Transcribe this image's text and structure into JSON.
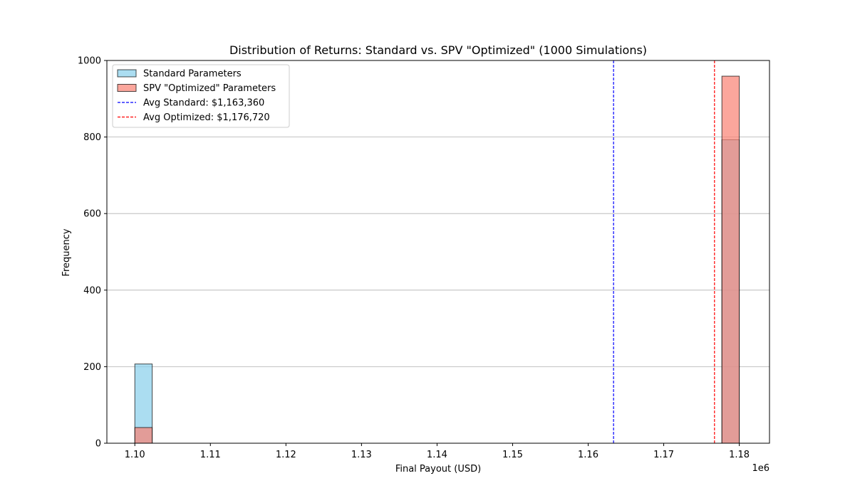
{
  "chart_data": {
    "type": "bar",
    "title": "Distribution of Returns: Standard vs. SPV \"Optimized\" (1000 Simulations)",
    "xlabel": "Final Payout (USD)",
    "ylabel": "Frequency",
    "x_offset_label": "1e6",
    "xlim": [
      1.0963,
      1.184
    ],
    "ylim": [
      0,
      1000
    ],
    "xticks": [
      1.1,
      1.11,
      1.12,
      1.13,
      1.14,
      1.15,
      1.16,
      1.17,
      1.18
    ],
    "xtick_labels": [
      "1.10",
      "1.11",
      "1.12",
      "1.13",
      "1.14",
      "1.15",
      "1.16",
      "1.17",
      "1.18"
    ],
    "yticks": [
      0,
      200,
      400,
      600,
      800,
      1000
    ],
    "ytick_labels": [
      "0",
      "200",
      "400",
      "600",
      "800",
      "1000"
    ],
    "grid": "y",
    "legend_position": "top-left",
    "series": [
      {
        "name": "Standard Parameters",
        "color": "#87ceeb",
        "bins": [
          {
            "x0": 1.1,
            "x1": 1.1023,
            "count": 207
          },
          {
            "x0": 1.1777,
            "x1": 1.18,
            "count": 793
          }
        ]
      },
      {
        "name": "SPV \"Optimized\" Parameters",
        "color": "#fa8072",
        "bins": [
          {
            "x0": 1.1,
            "x1": 1.1023,
            "count": 41
          },
          {
            "x0": 1.1777,
            "x1": 1.18,
            "count": 959
          }
        ]
      }
    ],
    "reference_lines": [
      {
        "name": "Avg Standard: $1,163,360",
        "x": 1.16336,
        "color": "#0000ff"
      },
      {
        "name": "Avg Optimized: $1,176,720",
        "x": 1.17672,
        "color": "#ff0000"
      }
    ]
  }
}
